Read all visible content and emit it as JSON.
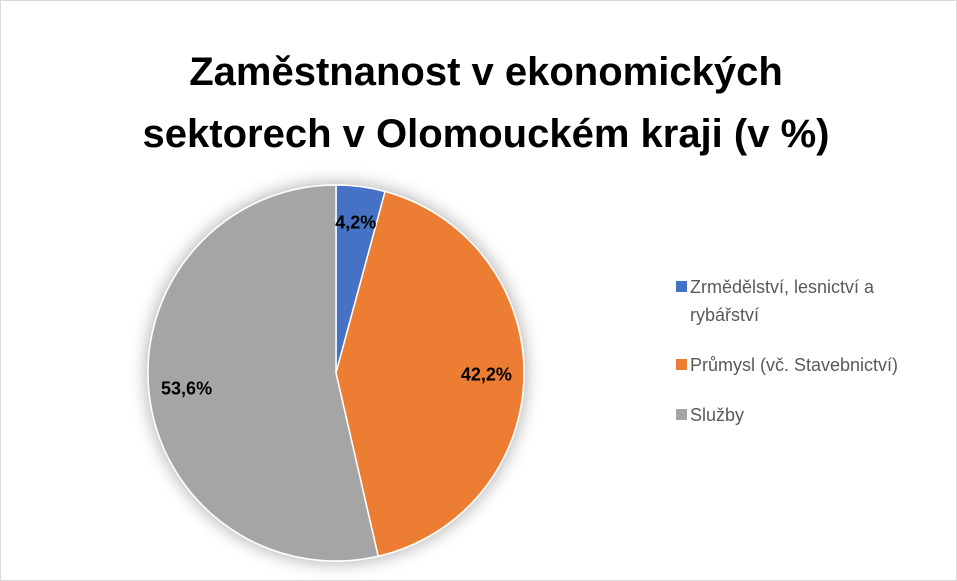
{
  "chart_data": {
    "type": "pie",
    "title": "Zaměstnanost v ekonomických sektorech v Olomouckém kraji (v %)",
    "categories": [
      "Zrmědělství, lesnictví a rybářství",
      "Průmysl (vč. Stavebnictví)",
      "Služby"
    ],
    "values": [
      4.2,
      42.2,
      53.6
    ],
    "value_labels": [
      "4,2%",
      "42,2%",
      "53,6%"
    ],
    "colors": [
      "#4472c4",
      "#ed7d31",
      "#a5a5a5"
    ],
    "legend": "right"
  }
}
